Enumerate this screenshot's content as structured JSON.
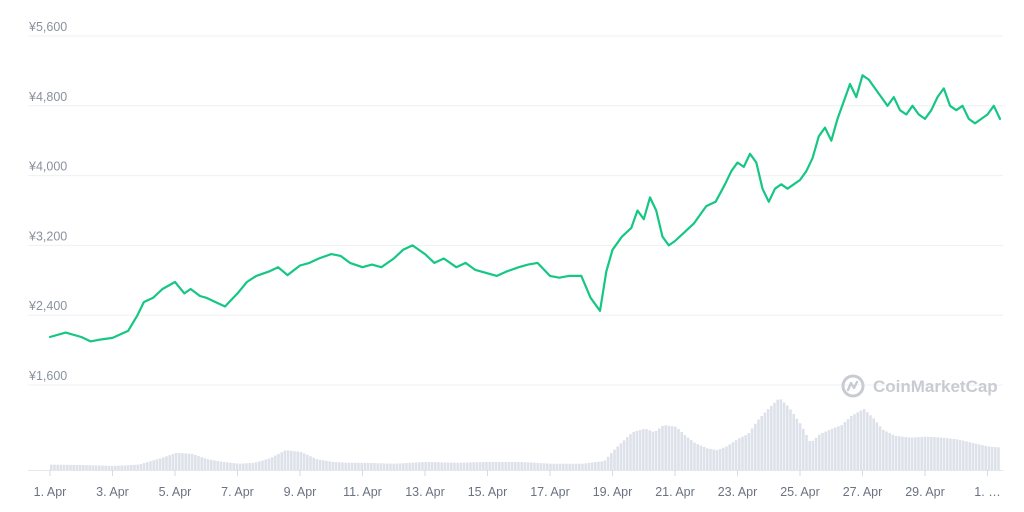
{
  "chart_data": {
    "type": "line",
    "title": "",
    "xlabel": "",
    "ylabel": "",
    "ylim": [
      1600,
      5600
    ],
    "y_ticks": [
      "¥5,600",
      "¥4,800",
      "¥4,000",
      "¥3,200",
      "¥2,400",
      "¥1,600"
    ],
    "y_tick_values": [
      5600,
      4800,
      4000,
      3200,
      2400,
      1600
    ],
    "x_ticks": [
      "1. Apr",
      "3. Apr",
      "5. Apr",
      "7. Apr",
      "9. Apr",
      "11. Apr",
      "13. Apr",
      "15. Apr",
      "17. Apr",
      "19. Apr",
      "21. Apr",
      "23. Apr",
      "25. Apr",
      "27. Apr",
      "29. Apr",
      "1. …"
    ],
    "x_tick_days": [
      1,
      3,
      5,
      7,
      9,
      11,
      13,
      15,
      17,
      19,
      21,
      23,
      25,
      27,
      29,
      31
    ],
    "x_range_days": [
      1,
      31.4
    ],
    "grid": true,
    "series": [
      {
        "kind": "price",
        "color": "#16c784",
        "x": [
          1.0,
          1.5,
          2.0,
          2.3,
          2.6,
          3.0,
          3.5,
          3.8,
          4.0,
          4.3,
          4.6,
          5.0,
          5.3,
          5.5,
          5.8,
          6.0,
          6.3,
          6.6,
          7.0,
          7.3,
          7.6,
          8.0,
          8.3,
          8.6,
          9.0,
          9.3,
          9.6,
          10.0,
          10.3,
          10.6,
          11.0,
          11.3,
          11.6,
          12.0,
          12.3,
          12.6,
          13.0,
          13.3,
          13.6,
          14.0,
          14.3,
          14.6,
          15.0,
          15.3,
          15.6,
          16.0,
          16.3,
          16.6,
          17.0,
          17.3,
          17.6,
          18.0,
          18.3,
          18.6,
          18.8,
          19.0,
          19.3,
          19.6,
          19.8,
          20.0,
          20.2,
          20.4,
          20.6,
          20.8,
          21.0,
          21.3,
          21.6,
          21.8,
          22.0,
          22.3,
          22.6,
          22.8,
          23.0,
          23.2,
          23.4,
          23.6,
          23.8,
          24.0,
          24.2,
          24.4,
          24.6,
          24.8,
          25.0,
          25.2,
          25.4,
          25.6,
          25.8,
          26.0,
          26.2,
          26.4,
          26.6,
          26.8,
          27.0,
          27.2,
          27.4,
          27.6,
          27.8,
          28.0,
          28.2,
          28.4,
          28.6,
          28.8,
          29.0,
          29.2,
          29.4,
          29.6,
          29.8,
          30.0,
          30.2,
          30.4,
          30.6,
          30.8,
          31.0,
          31.2,
          31.4
        ],
        "values": [
          2150,
          2200,
          2150,
          2100,
          2120,
          2140,
          2220,
          2400,
          2550,
          2600,
          2700,
          2780,
          2650,
          2700,
          2620,
          2600,
          2550,
          2500,
          2650,
          2780,
          2850,
          2900,
          2950,
          2860,
          2970,
          3000,
          3050,
          3100,
          3080,
          3000,
          2950,
          2980,
          2950,
          3050,
          3150,
          3200,
          3100,
          3000,
          3050,
          2950,
          3000,
          2920,
          2880,
          2850,
          2900,
          2950,
          2980,
          3000,
          2850,
          2830,
          2850,
          2850,
          2600,
          2450,
          2900,
          3150,
          3300,
          3400,
          3600,
          3500,
          3750,
          3600,
          3300,
          3200,
          3250,
          3350,
          3450,
          3550,
          3650,
          3700,
          3900,
          4050,
          4150,
          4100,
          4250,
          4150,
          3850,
          3700,
          3850,
          3900,
          3850,
          3900,
          3950,
          4050,
          4200,
          4450,
          4550,
          4400,
          4650,
          4850,
          5050,
          4900,
          5150,
          5100,
          5000,
          4900,
          4800,
          4900,
          4750,
          4700,
          4800,
          4700,
          4650,
          4750,
          4900,
          5000,
          4800,
          4750,
          4800,
          4650,
          4600,
          4650,
          4700,
          4800,
          4650
        ]
      },
      {
        "kind": "volume",
        "color": "#dde1ea",
        "x": [
          1.0,
          2.0,
          3.0,
          3.8,
          4.5,
          5.0,
          5.5,
          6.0,
          6.5,
          7.0,
          7.5,
          8.0,
          8.5,
          9.0,
          9.5,
          10.0,
          10.5,
          11.0,
          12.0,
          13.0,
          14.0,
          15.0,
          16.0,
          17.0,
          18.0,
          18.7,
          19.0,
          19.3,
          19.6,
          20.0,
          20.3,
          20.6,
          21.0,
          21.3,
          21.6,
          22.0,
          22.3,
          22.6,
          23.0,
          23.3,
          23.6,
          24.0,
          24.3,
          24.6,
          25.0,
          25.3,
          25.6,
          26.0,
          26.3,
          26.6,
          27.0,
          27.3,
          27.6,
          28.0,
          28.5,
          29.0,
          29.5,
          30.0,
          30.5,
          31.0,
          31.4
        ],
        "values": [
          0.06,
          0.055,
          0.045,
          0.06,
          0.13,
          0.19,
          0.18,
          0.12,
          0.09,
          0.07,
          0.08,
          0.13,
          0.22,
          0.2,
          0.12,
          0.09,
          0.08,
          0.08,
          0.07,
          0.09,
          0.08,
          0.09,
          0.09,
          0.07,
          0.07,
          0.1,
          0.22,
          0.32,
          0.42,
          0.46,
          0.42,
          0.5,
          0.48,
          0.38,
          0.3,
          0.24,
          0.22,
          0.26,
          0.35,
          0.4,
          0.55,
          0.7,
          0.8,
          0.7,
          0.5,
          0.3,
          0.4,
          0.46,
          0.5,
          0.6,
          0.68,
          0.58,
          0.45,
          0.38,
          0.36,
          0.37,
          0.36,
          0.34,
          0.3,
          0.26,
          0.25
        ]
      }
    ]
  },
  "watermark": {
    "brand": "CoinMarketCap",
    "icon": "coinmarketcap-logo-icon"
  }
}
